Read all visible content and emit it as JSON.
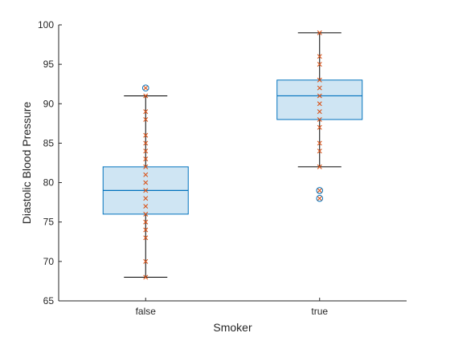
{
  "chart_data": {
    "type": "box",
    "xlabel": "Smoker",
    "ylabel": "Diastolic Blood Pressure",
    "ylim": [
      65,
      100
    ],
    "yticks": [
      65,
      70,
      75,
      80,
      85,
      90,
      95,
      100
    ],
    "categories": [
      "false",
      "true"
    ],
    "grid": false,
    "box_fill_color": "#cfe5f3",
    "box_edge_color": "#0072bd",
    "whisker_color": "#000000",
    "outlier_color": "#0072bd",
    "points_color": "#d95319",
    "groups": [
      {
        "label": "false",
        "whisker_low": 68,
        "q1": 76,
        "median": 79,
        "q3": 82,
        "whisker_high": 91,
        "outliers": [
          92
        ],
        "points": [
          68,
          70,
          73,
          74,
          75,
          76,
          77,
          78,
          79,
          80,
          81,
          82,
          83,
          84,
          85,
          86,
          88,
          89,
          91
        ]
      },
      {
        "label": "true",
        "whisker_low": 82,
        "q1": 88,
        "median": 91,
        "q3": 93,
        "whisker_high": 99,
        "outliers": [
          78,
          79
        ],
        "points": [
          82,
          84,
          85,
          87,
          88,
          89,
          90,
          91,
          92,
          93,
          95,
          96,
          99
        ]
      }
    ]
  }
}
